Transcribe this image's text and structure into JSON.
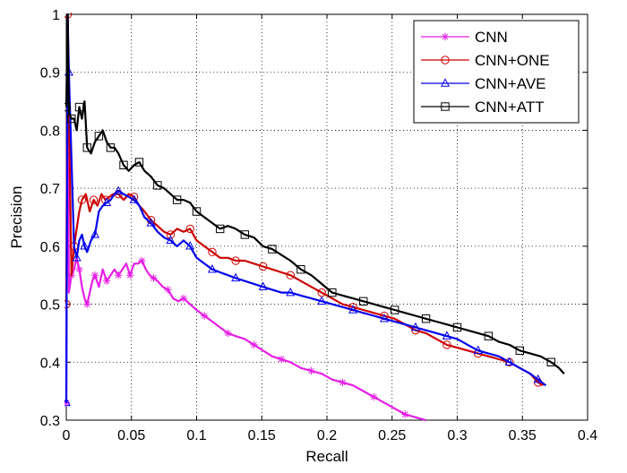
{
  "chart_data": {
    "type": "line",
    "title": "",
    "xlabel": "Recall",
    "ylabel": "Precision",
    "xlim": [
      0,
      0.4
    ],
    "ylim": [
      0.3,
      1
    ],
    "xticks": [
      0,
      0.05,
      0.1,
      0.15,
      0.2,
      0.25,
      0.3,
      0.35,
      0.4
    ],
    "xtick_labels": [
      "0",
      "0.05",
      "0.1",
      "0.15",
      "0.2",
      "0.25",
      "0.3",
      "0.35",
      "0.4"
    ],
    "yticks": [
      0.3,
      0.4,
      0.5,
      0.6,
      0.7,
      0.8,
      0.9,
      1
    ],
    "ytick_labels": [
      "0.3",
      "0.4",
      "0.5",
      "0.6",
      "0.7",
      "0.8",
      "0.9",
      "1"
    ],
    "grid": true,
    "legend_position": "top-right",
    "series": [
      {
        "name": "CNN",
        "color": "#e61ee6",
        "marker": "star",
        "x": [
          0,
          0.001,
          0.002,
          0.004,
          0.006,
          0.008,
          0.01,
          0.012,
          0.014,
          0.016,
          0.018,
          0.02,
          0.022,
          0.025,
          0.028,
          0.031,
          0.034,
          0.037,
          0.04,
          0.043,
          0.046,
          0.049,
          0.052,
          0.055,
          0.058,
          0.061,
          0.064,
          0.067,
          0.07,
          0.074,
          0.078,
          0.082,
          0.086,
          0.09,
          0.095,
          0.1,
          0.106,
          0.112,
          0.118,
          0.124,
          0.13,
          0.137,
          0.144,
          0.151,
          0.158,
          0.165,
          0.172,
          0.18,
          0.188,
          0.196,
          0.204,
          0.212,
          0.22,
          0.228,
          0.236,
          0.244,
          0.252,
          0.26,
          0.268,
          0.276
        ],
        "y": [
          0.33,
          1.0,
          0.52,
          0.55,
          0.56,
          0.58,
          0.56,
          0.53,
          0.51,
          0.5,
          0.52,
          0.54,
          0.55,
          0.53,
          0.56,
          0.54,
          0.55,
          0.56,
          0.55,
          0.56,
          0.57,
          0.55,
          0.57,
          0.57,
          0.575,
          0.56,
          0.55,
          0.545,
          0.54,
          0.53,
          0.525,
          0.51,
          0.505,
          0.51,
          0.5,
          0.49,
          0.48,
          0.47,
          0.46,
          0.45,
          0.445,
          0.44,
          0.43,
          0.42,
          0.41,
          0.405,
          0.4,
          0.39,
          0.385,
          0.38,
          0.37,
          0.365,
          0.36,
          0.35,
          0.34,
          0.33,
          0.32,
          0.31,
          0.305,
          0.3
        ]
      },
      {
        "name": "CNN+ONE",
        "color": "#cc0000",
        "marker": "circle",
        "x": [
          0,
          0.001,
          0.002,
          0.004,
          0.006,
          0.008,
          0.01,
          0.012,
          0.015,
          0.018,
          0.021,
          0.024,
          0.027,
          0.03,
          0.033,
          0.036,
          0.04,
          0.044,
          0.048,
          0.052,
          0.056,
          0.06,
          0.065,
          0.07,
          0.075,
          0.08,
          0.085,
          0.09,
          0.095,
          0.1,
          0.106,
          0.112,
          0.118,
          0.124,
          0.13,
          0.137,
          0.144,
          0.151,
          0.158,
          0.165,
          0.172,
          0.18,
          0.188,
          0.196,
          0.204,
          0.212,
          0.22,
          0.228,
          0.236,
          0.244,
          0.252,
          0.26,
          0.268,
          0.276,
          0.284,
          0.292,
          0.3,
          0.308,
          0.316,
          0.324,
          0.332,
          0.34,
          0.348,
          0.356,
          0.362,
          0.366
        ],
        "y": [
          0.5,
          1.0,
          0.83,
          0.55,
          0.6,
          0.63,
          0.66,
          0.68,
          0.69,
          0.66,
          0.68,
          0.67,
          0.69,
          0.68,
          0.685,
          0.69,
          0.69,
          0.68,
          0.69,
          0.685,
          0.67,
          0.66,
          0.645,
          0.635,
          0.625,
          0.62,
          0.63,
          0.625,
          0.63,
          0.61,
          0.6,
          0.59,
          0.58,
          0.58,
          0.575,
          0.575,
          0.57,
          0.565,
          0.56,
          0.555,
          0.55,
          0.54,
          0.53,
          0.52,
          0.51,
          0.5,
          0.495,
          0.49,
          0.485,
          0.48,
          0.475,
          0.465,
          0.455,
          0.45,
          0.44,
          0.43,
          0.425,
          0.42,
          0.415,
          0.41,
          0.405,
          0.4,
          0.39,
          0.38,
          0.365,
          0.36
        ]
      },
      {
        "name": "CNN+AVE",
        "color": "#0000ee",
        "marker": "triangle",
        "x": [
          0,
          0.001,
          0.002,
          0.004,
          0.006,
          0.008,
          0.01,
          0.012,
          0.014,
          0.016,
          0.019,
          0.022,
          0.025,
          0.028,
          0.031,
          0.034,
          0.037,
          0.04,
          0.044,
          0.048,
          0.052,
          0.056,
          0.06,
          0.065,
          0.07,
          0.075,
          0.08,
          0.085,
          0.09,
          0.095,
          0.1,
          0.106,
          0.112,
          0.118,
          0.124,
          0.13,
          0.137,
          0.144,
          0.151,
          0.158,
          0.165,
          0.172,
          0.18,
          0.188,
          0.196,
          0.204,
          0.212,
          0.22,
          0.228,
          0.236,
          0.244,
          0.252,
          0.26,
          0.268,
          0.276,
          0.284,
          0.292,
          0.3,
          0.308,
          0.316,
          0.324,
          0.332,
          0.34,
          0.348,
          0.356,
          0.362,
          0.368
        ],
        "y": [
          0.33,
          1.0,
          0.9,
          0.75,
          0.6,
          0.58,
          0.61,
          0.62,
          0.6,
          0.59,
          0.61,
          0.62,
          0.66,
          0.67,
          0.675,
          0.68,
          0.69,
          0.695,
          0.69,
          0.685,
          0.68,
          0.67,
          0.65,
          0.64,
          0.625,
          0.615,
          0.61,
          0.6,
          0.61,
          0.6,
          0.58,
          0.57,
          0.56,
          0.555,
          0.55,
          0.545,
          0.54,
          0.535,
          0.53,
          0.525,
          0.52,
          0.52,
          0.515,
          0.51,
          0.505,
          0.5,
          0.495,
          0.49,
          0.485,
          0.48,
          0.475,
          0.47,
          0.465,
          0.46,
          0.455,
          0.45,
          0.445,
          0.44,
          0.43,
          0.42,
          0.415,
          0.41,
          0.4,
          0.39,
          0.38,
          0.37,
          0.36
        ]
      },
      {
        "name": "CNN+ATT",
        "color": "#000000",
        "marker": "square",
        "x": [
          0,
          0.001,
          0.002,
          0.004,
          0.006,
          0.008,
          0.01,
          0.012,
          0.014,
          0.016,
          0.019,
          0.022,
          0.025,
          0.028,
          0.031,
          0.034,
          0.037,
          0.04,
          0.044,
          0.048,
          0.052,
          0.056,
          0.06,
          0.065,
          0.07,
          0.075,
          0.08,
          0.085,
          0.09,
          0.095,
          0.1,
          0.106,
          0.112,
          0.118,
          0.124,
          0.13,
          0.137,
          0.144,
          0.151,
          0.158,
          0.165,
          0.172,
          0.18,
          0.188,
          0.196,
          0.204,
          0.212,
          0.22,
          0.228,
          0.236,
          0.244,
          0.252,
          0.26,
          0.268,
          0.276,
          0.284,
          0.292,
          0.3,
          0.308,
          0.316,
          0.324,
          0.332,
          0.34,
          0.348,
          0.356,
          0.364,
          0.372,
          0.378,
          0.382
        ],
        "y": [
          0.84,
          1.0,
          0.83,
          0.82,
          0.82,
          0.8,
          0.84,
          0.82,
          0.85,
          0.77,
          0.76,
          0.78,
          0.79,
          0.8,
          0.78,
          0.77,
          0.77,
          0.76,
          0.74,
          0.73,
          0.74,
          0.745,
          0.73,
          0.72,
          0.705,
          0.7,
          0.69,
          0.68,
          0.68,
          0.675,
          0.66,
          0.65,
          0.64,
          0.63,
          0.635,
          0.63,
          0.62,
          0.615,
          0.6,
          0.595,
          0.585,
          0.575,
          0.56,
          0.55,
          0.535,
          0.52,
          0.515,
          0.51,
          0.505,
          0.5,
          0.495,
          0.49,
          0.485,
          0.48,
          0.475,
          0.47,
          0.465,
          0.46,
          0.455,
          0.45,
          0.445,
          0.435,
          0.43,
          0.42,
          0.415,
          0.41,
          0.4,
          0.39,
          0.38
        ]
      }
    ]
  }
}
